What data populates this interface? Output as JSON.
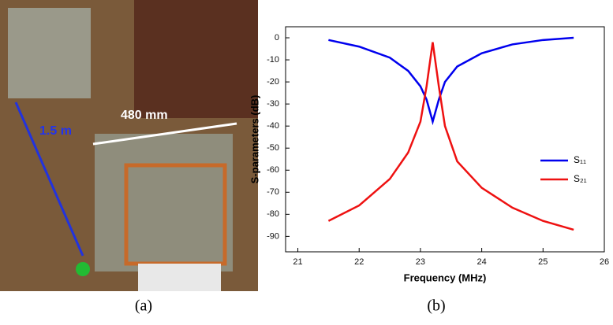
{
  "photo": {
    "labels": [
      "1.5 m",
      "480 mm"
    ]
  },
  "captions": [
    "(a)",
    "(b)"
  ],
  "chart_data": {
    "type": "line",
    "xlabel": "Frequency (MHz)",
    "ylabel": "S-parameters (dB)",
    "x": [
      21.5,
      22,
      22.5,
      22.8,
      23,
      23.1,
      23.2,
      23.3,
      23.4,
      23.6,
      24,
      24.5,
      25,
      25.5
    ],
    "series": [
      {
        "name": "S₁₁",
        "color": "#0000ee",
        "values": [
          -1,
          -4,
          -9,
          -15,
          -22,
          -28,
          -38,
          -28,
          -20,
          -13,
          -7,
          -3,
          -1,
          0
        ]
      },
      {
        "name": "S₂₁",
        "color": "#ee1111",
        "values": [
          -83,
          -76,
          -64,
          -52,
          -38,
          -22,
          -2,
          -22,
          -40,
          -56,
          -68,
          -77,
          -83,
          -87
        ]
      }
    ],
    "xlim": [
      20.8,
      26
    ],
    "xticks": [
      21,
      22,
      23,
      24,
      25,
      26
    ],
    "ylim": [
      -97,
      5
    ],
    "yticks": [
      0,
      -10,
      -20,
      -30,
      -40,
      -50,
      -60,
      -70,
      -80,
      -90
    ],
    "legend": "right"
  }
}
